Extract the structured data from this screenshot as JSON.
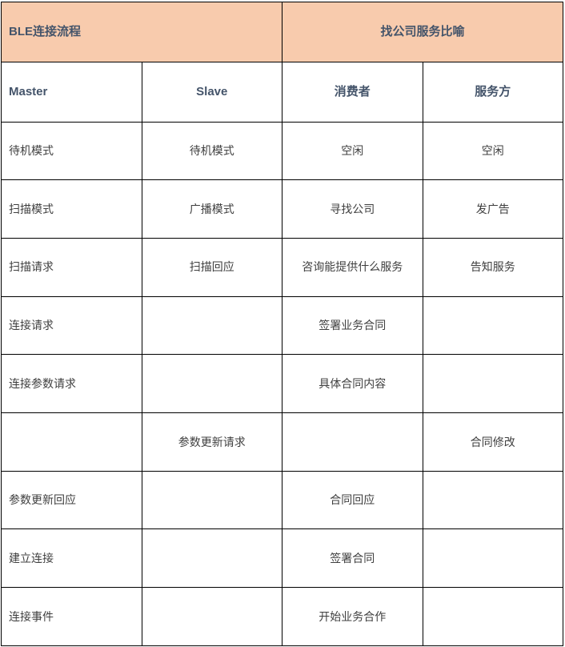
{
  "colors": {
    "group_header_bg": "#f8cbad",
    "header_text": "#44546a",
    "body_text": "#3f3f3f",
    "grid_border": "#000000",
    "cell_bg": "#ffffff"
  },
  "table": {
    "group_headers": [
      {
        "label": "BLE连接流程",
        "align": "left"
      },
      {
        "label": "找公司服务比喻",
        "align": "center"
      }
    ],
    "column_headers": [
      "Master",
      "Slave",
      "消费者",
      "服务方"
    ],
    "rows": [
      [
        "待机模式",
        "待机模式",
        "空闲",
        "空闲"
      ],
      [
        "扫描模式",
        "广播模式",
        "寻找公司",
        "发广告"
      ],
      [
        "扫描请求",
        "扫描回应",
        "咨询能提供什么服务",
        "告知服务"
      ],
      [
        "连接请求",
        "",
        "签署业务合同",
        ""
      ],
      [
        "连接参数请求",
        "",
        "具体合同内容",
        ""
      ],
      [
        "",
        "参数更新请求",
        "",
        "合同修改"
      ],
      [
        "参数更新回应",
        "",
        "合同回应",
        ""
      ],
      [
        "建立连接",
        "",
        "签署合同",
        ""
      ],
      [
        "连接事件",
        "",
        "开始业务合作",
        ""
      ]
    ]
  }
}
